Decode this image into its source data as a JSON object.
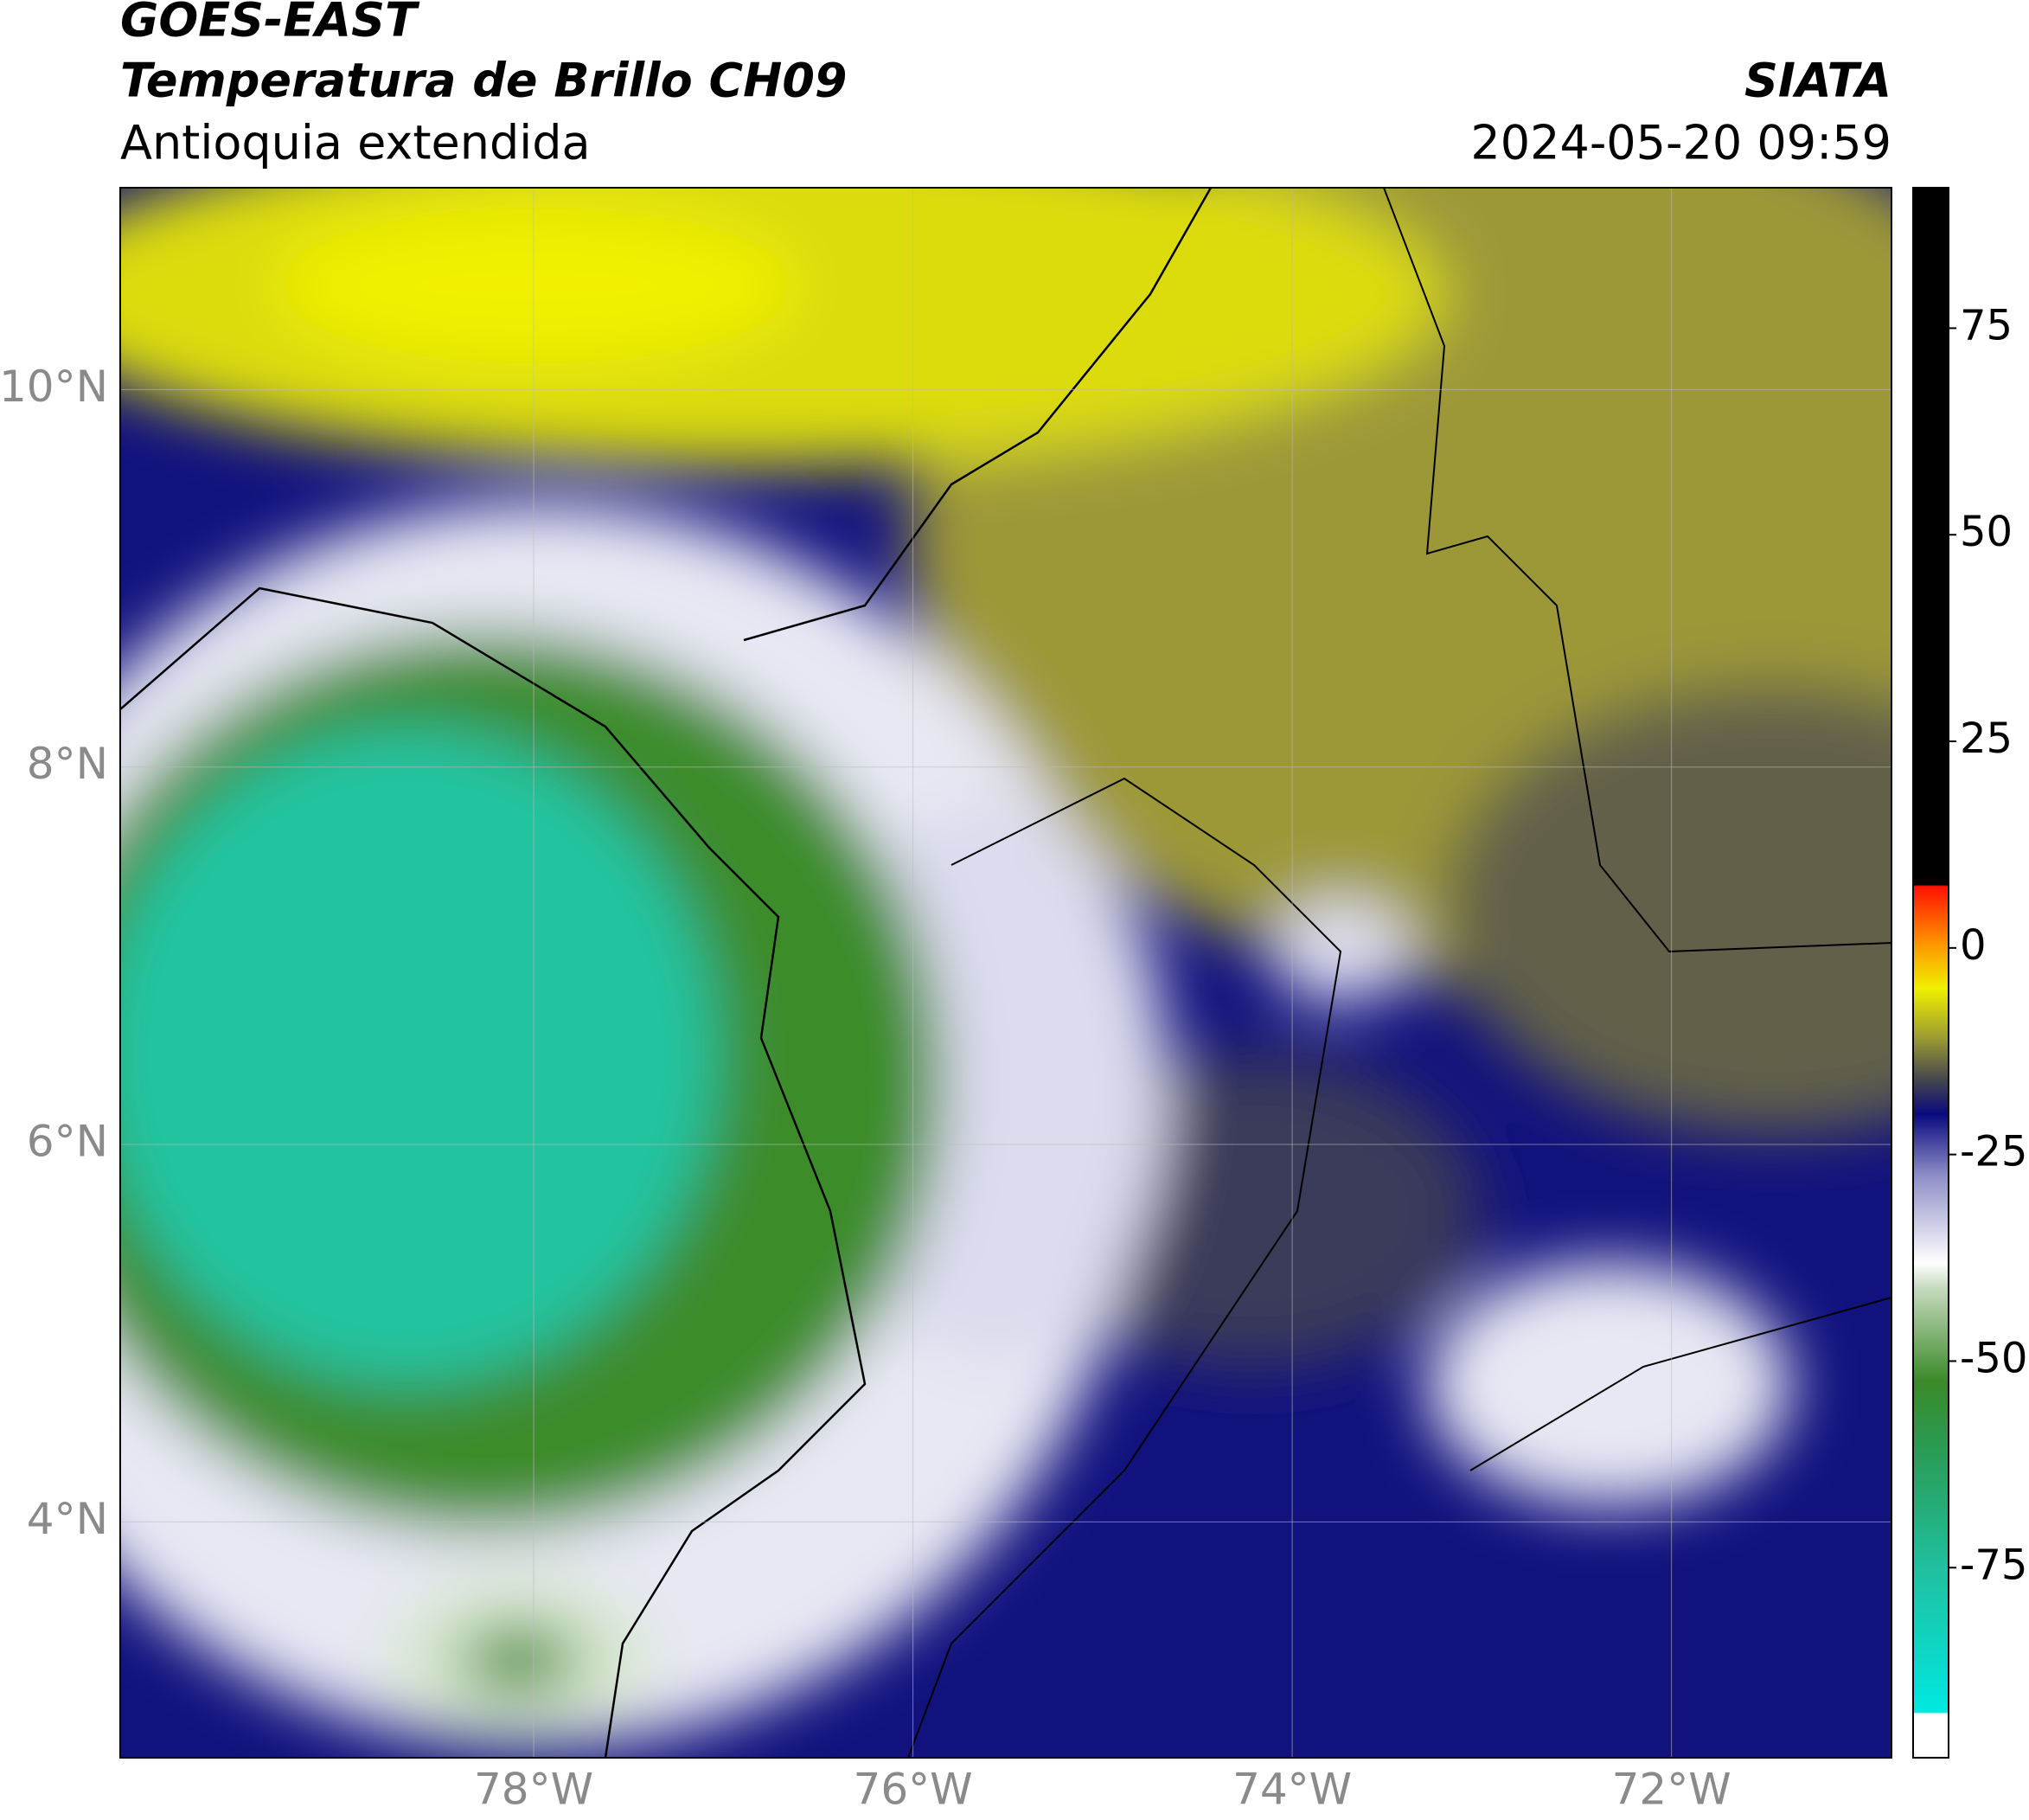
{
  "header": {
    "title": "GOES-EAST",
    "subtitle": "Temperatura de Brillo CH09",
    "region": "Antioquia extendida",
    "source": "SIATA",
    "datetime": "2024-05-20 09:59"
  },
  "map": {
    "xlim": [
      -80.18,
      -70.84
    ],
    "ylim": [
      2.75,
      11.07
    ],
    "xticks": [
      {
        "value": -78,
        "label": "78°W"
      },
      {
        "value": -76,
        "label": "76°W"
      },
      {
        "value": -74,
        "label": "74°W"
      },
      {
        "value": -72,
        "label": "72°W"
      }
    ],
    "yticks": [
      {
        "value": 4,
        "label": "4°N"
      },
      {
        "value": 6,
        "label": "6°N"
      },
      {
        "value": 8,
        "label": "8°N"
      },
      {
        "value": 10,
        "label": "10°N"
      }
    ],
    "grid": true
  },
  "colorbar": {
    "clim": [
      -98,
      92
    ],
    "ticks": [
      -75,
      -50,
      -25,
      0,
      25,
      50,
      75
    ]
  }
}
